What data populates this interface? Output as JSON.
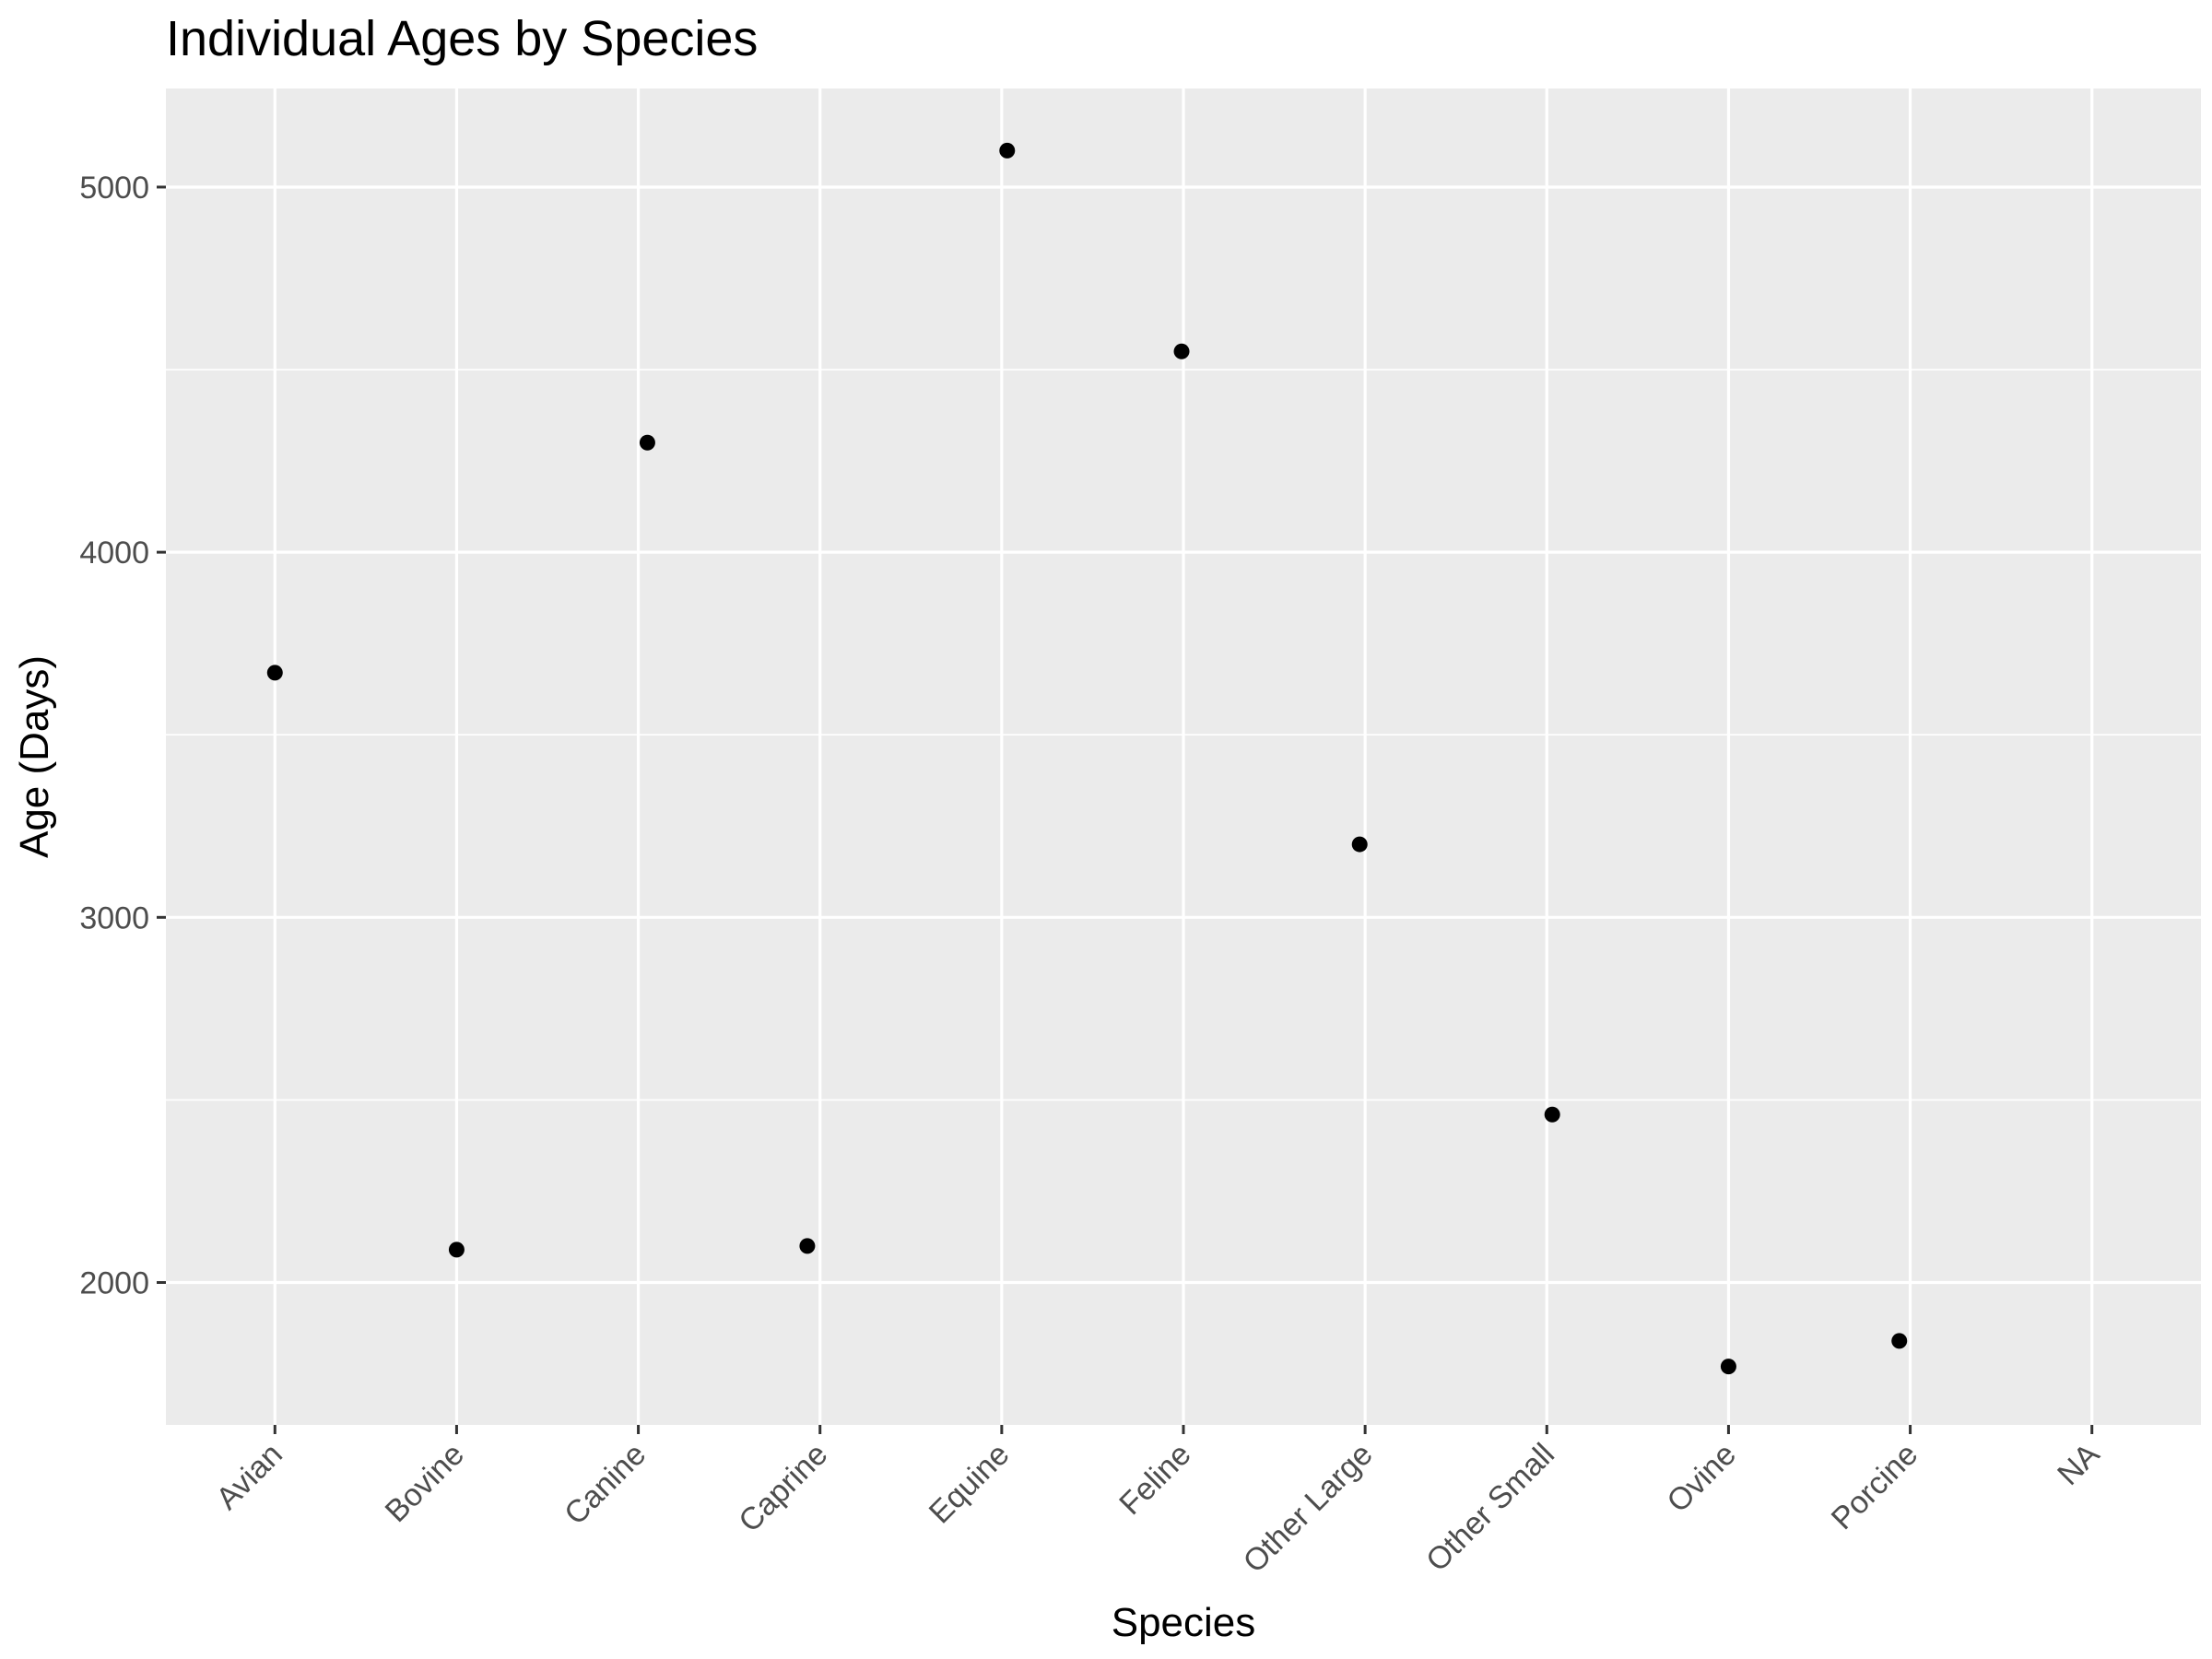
{
  "chart_data": {
    "type": "scatter",
    "title": "Individual Ages by Species",
    "xlabel": "Species",
    "ylabel": "Age (Days)",
    "categories": [
      "Avian",
      "Bovine",
      "Canine",
      "Caprine",
      "Equine",
      "Feline",
      "Other Large",
      "Other Small",
      "Ovine",
      "Porcine",
      "NA"
    ],
    "points": [
      {
        "x": "Avian",
        "y": 3670
      },
      {
        "x": "Bovine",
        "y": 2090
      },
      {
        "x": "Canine",
        "y": 4300
      },
      {
        "x": "Caprine",
        "y": 2100
      },
      {
        "x": "Equine",
        "y": 5100
      },
      {
        "x": "Feline",
        "y": 4550
      },
      {
        "x": "Other Large",
        "y": 3200
      },
      {
        "x": "Other Small",
        "y": 2460
      },
      {
        "x": "Ovine",
        "y": 1770
      },
      {
        "x": "Porcine",
        "y": 1840
      }
    ],
    "y_ticks": [
      2000,
      3000,
      4000,
      5000
    ],
    "ylim": [
      1610,
      5270
    ],
    "grid": true,
    "legend": "none",
    "colors": {
      "panel": "#ebebeb",
      "grid": "#ffffff",
      "point": "#000000",
      "tick_mark": "#333333"
    }
  }
}
